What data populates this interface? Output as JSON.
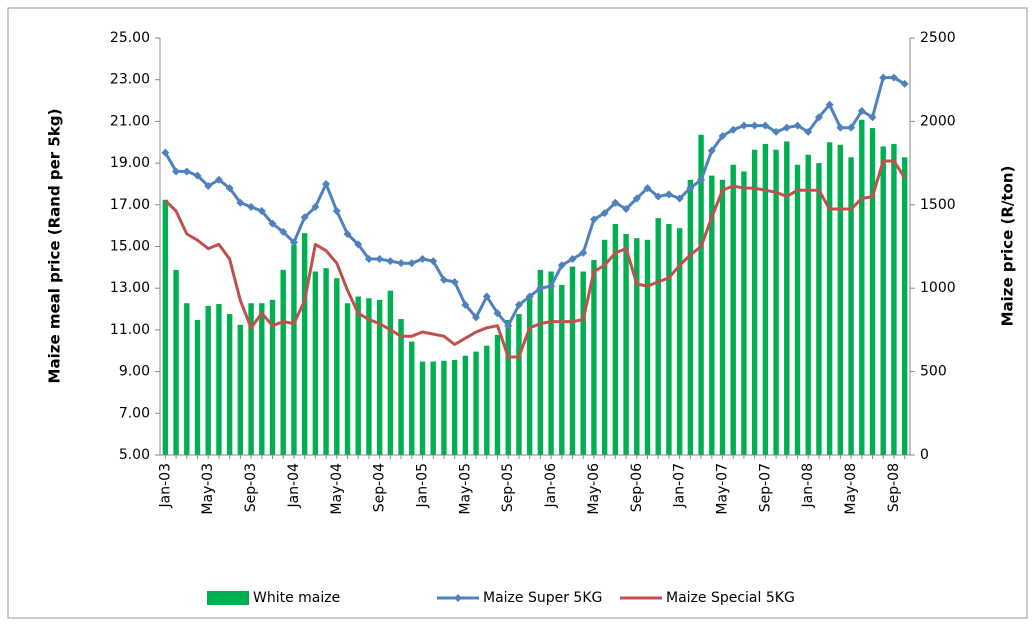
{
  "chart_data": {
    "type": "combo",
    "y_label": "Maize meal price (Rand per 5kg)",
    "y2_label": "Maize price (R/ton)",
    "categories": [
      "Jan-03",
      null,
      null,
      null,
      "May-03",
      null,
      null,
      null,
      "Sep-03",
      null,
      null,
      null,
      "Jan-04",
      null,
      null,
      null,
      "May-04",
      null,
      null,
      null,
      "Sep-04",
      null,
      null,
      null,
      "Jan-05",
      null,
      null,
      null,
      "May-05",
      null,
      null,
      null,
      "Sep-05",
      null,
      null,
      null,
      "Jan-06",
      null,
      null,
      null,
      "May-06",
      null,
      null,
      null,
      "Sep-06",
      null,
      null,
      null,
      "Jan-07",
      null,
      null,
      null,
      "May-07",
      null,
      null,
      null,
      "Sep-07",
      null,
      null,
      null,
      "Jan-08",
      null,
      null,
      null,
      "May-08",
      null,
      null,
      null,
      "Sep-08",
      null
    ],
    "ylim": [
      5,
      25
    ],
    "yticks": [
      {
        "value": 5,
        "label": "5.00"
      },
      {
        "value": 7,
        "label": "7.00"
      },
      {
        "value": 9,
        "label": "9.00"
      },
      {
        "value": 11,
        "label": "11.00"
      },
      {
        "value": 13,
        "label": "13.00"
      },
      {
        "value": 15,
        "label": "15.00"
      },
      {
        "value": 17,
        "label": "17.00"
      },
      {
        "value": 19,
        "label": "19.00"
      },
      {
        "value": 21,
        "label": "21.00"
      },
      {
        "value": 23,
        "label": "23.00"
      },
      {
        "value": 25,
        "label": "25.00"
      }
    ],
    "y2lim": [
      0,
      2500
    ],
    "y2ticks": [
      0,
      500,
      1000,
      1500,
      2000,
      2500
    ],
    "grid": false,
    "legend": "bottom",
    "series": [
      {
        "name": "White maize",
        "type": "bar",
        "axis": "y2",
        "color": "#00b050",
        "values": [
          1530,
          1110,
          910,
          810,
          893,
          905,
          845,
          780,
          910,
          910,
          930,
          1110,
          1260,
          1330,
          1100,
          1120,
          1060,
          910,
          950,
          940,
          930,
          985,
          815,
          680,
          560,
          560,
          565,
          570,
          595,
          620,
          655,
          720,
          810,
          845,
          960,
          1110,
          1100,
          1020,
          1130,
          1100,
          1170,
          1290,
          1385,
          1325,
          1300,
          1290,
          1420,
          1385,
          1360,
          1650,
          1920,
          1675,
          1650,
          1740,
          1700,
          1830,
          1865,
          1830,
          1880,
          1740,
          1800,
          1750,
          1875,
          1860,
          1785,
          2010,
          1960,
          1850,
          1865,
          1785
        ]
      },
      {
        "name": "Maize Super 5KG",
        "type": "line",
        "color": "#4f81bd",
        "values": [
          19.5,
          18.6,
          18.6,
          18.4,
          17.9,
          18.2,
          17.8,
          17.1,
          16.9,
          16.7,
          16.1,
          15.7,
          15.2,
          16.4,
          16.9,
          18.0,
          16.7,
          15.6,
          15.1,
          14.4,
          14.4,
          14.3,
          14.2,
          14.2,
          14.4,
          14.3,
          13.4,
          13.3,
          12.2,
          11.6,
          12.6,
          11.8,
          11.2,
          12.2,
          12.6,
          13.0,
          13.1,
          14.1,
          14.4,
          14.7,
          16.3,
          16.6,
          17.1,
          16.8,
          17.3,
          17.8,
          17.4,
          17.5,
          17.3,
          17.8,
          18.2,
          19.6,
          20.3,
          20.6,
          20.8,
          20.8,
          20.8,
          20.5,
          20.7,
          20.8,
          20.5,
          21.2,
          21.8,
          20.7,
          20.7,
          21.5,
          21.2,
          23.1,
          23.1,
          22.8
        ]
      },
      {
        "name": "Maize Special 5KG",
        "type": "line",
        "color": "#c0504d",
        "values": [
          17.2,
          16.7,
          15.6,
          15.3,
          14.9,
          15.1,
          14.4,
          12.4,
          11.1,
          11.8,
          11.2,
          11.4,
          11.3,
          12.4,
          15.1,
          14.8,
          14.2,
          12.9,
          11.8,
          11.5,
          11.3,
          11.0,
          10.7,
          10.7,
          10.9,
          10.8,
          10.7,
          10.3,
          10.6,
          10.9,
          11.1,
          11.2,
          9.7,
          9.7,
          11.1,
          11.3,
          11.4,
          11.4,
          11.4,
          11.5,
          13.8,
          14.1,
          14.7,
          14.9,
          13.2,
          13.1,
          13.3,
          13.5,
          14.1,
          14.6,
          15.0,
          16.4,
          17.7,
          17.9,
          17.8,
          17.8,
          17.7,
          17.6,
          17.4,
          17.7,
          17.7,
          17.7,
          16.8,
          16.8,
          16.8,
          17.3,
          17.4,
          19.1,
          19.1,
          18.3
        ]
      }
    ]
  }
}
